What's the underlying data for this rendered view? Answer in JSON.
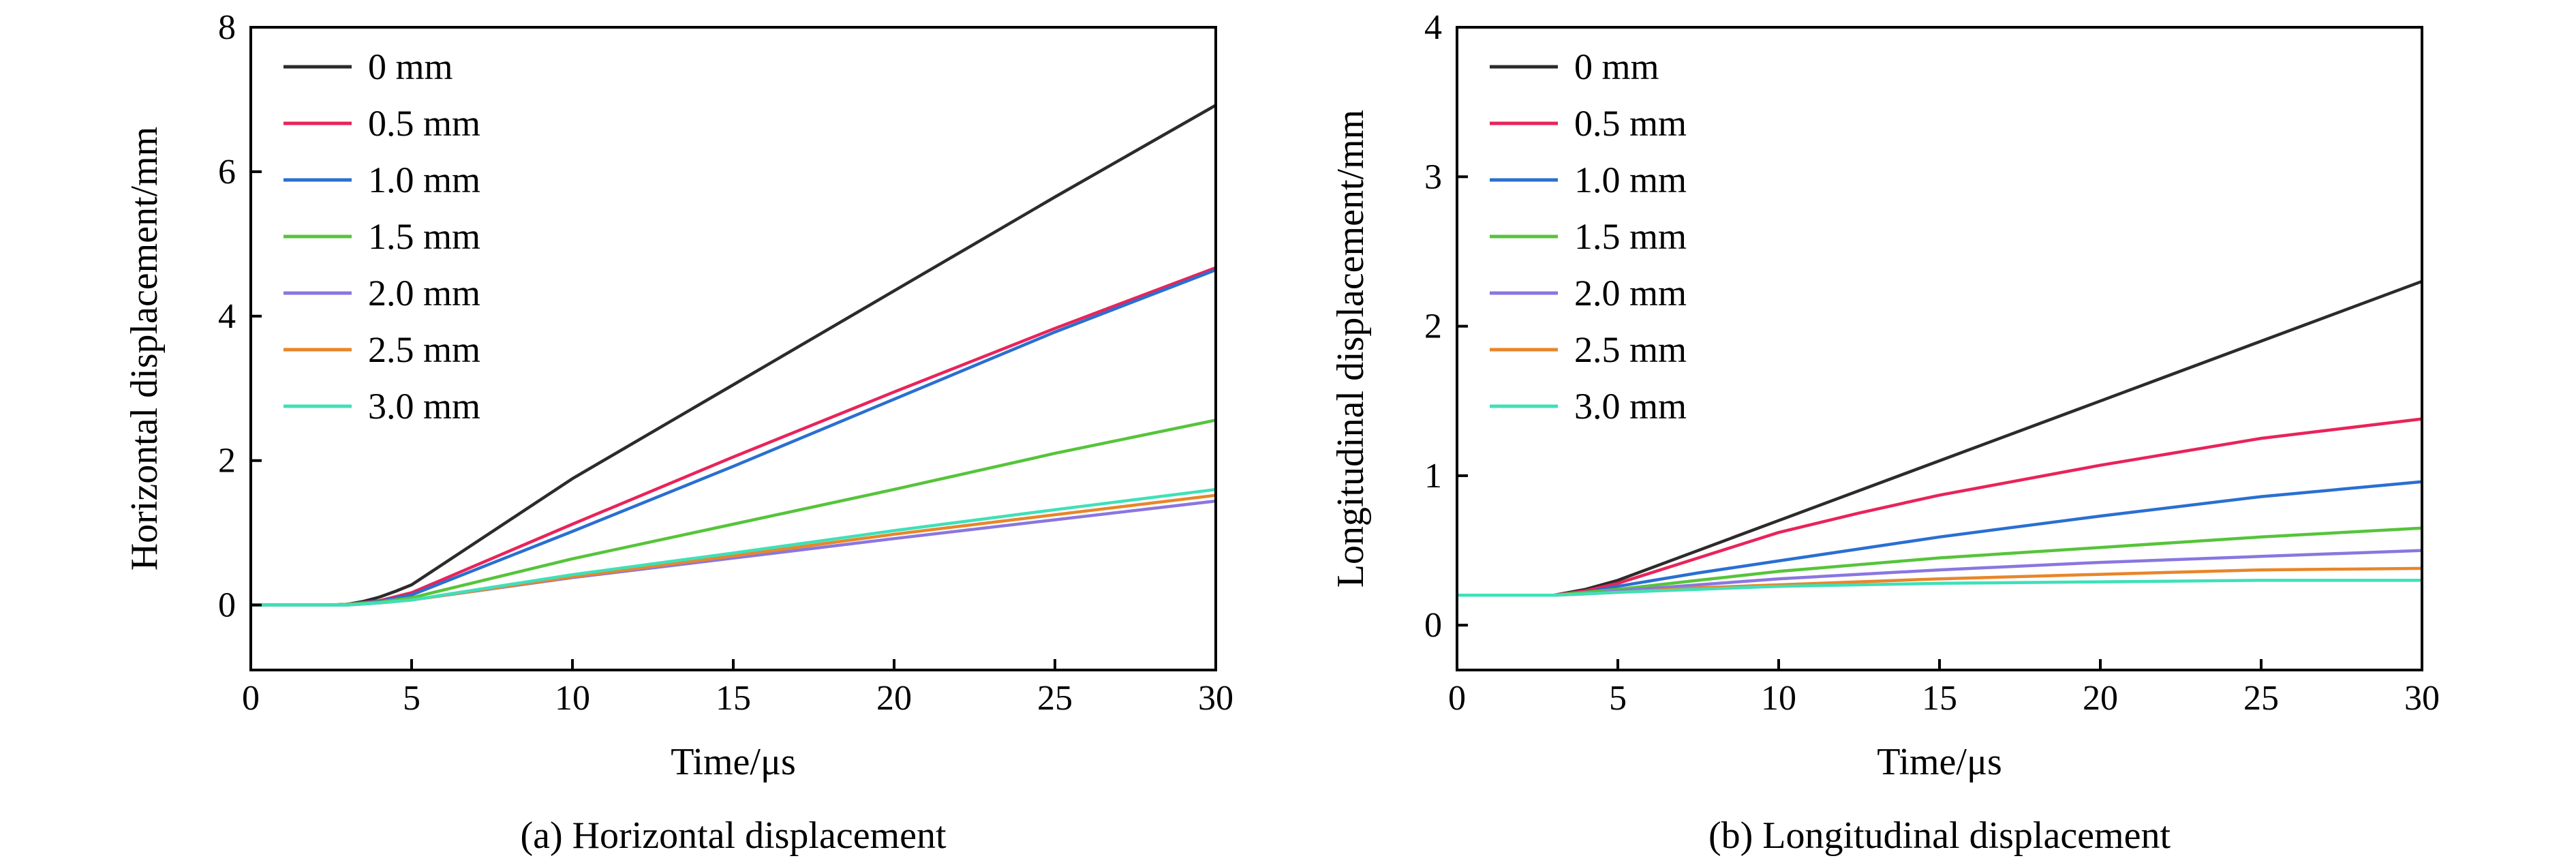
{
  "figure": {
    "captions": [
      "(a) Horizontal displacement",
      "(b) Longitudinal displacement"
    ]
  },
  "colors": {
    "0 mm": "#2b2b2b",
    "0.5 mm": "#e8245a",
    "1.0 mm": "#2a6fd1",
    "1.5 mm": "#56c43a",
    "2.0 mm": "#8a76e0",
    "2.5 mm": "#e8862a",
    "3.0 mm": "#3fe0b8"
  },
  "chart_data": [
    {
      "type": "line",
      "title": "(a) Horizontal displacement",
      "xlabel": "Time/μs",
      "ylabel": "Horizontal displacement/mm",
      "xlim": [
        0,
        30
      ],
      "ylim": [
        -0.9,
        8
      ],
      "xticks": [
        0,
        5,
        10,
        15,
        20,
        25,
        30
      ],
      "yticks": [
        0,
        2,
        4,
        6,
        8
      ],
      "legend": [
        "0 mm",
        "0.5 mm",
        "1.0 mm",
        "1.5 mm",
        "2.0 mm",
        "2.5 mm",
        "3.0 mm"
      ],
      "legend_position": "top-left",
      "series": [
        {
          "name": "0 mm",
          "x": [
            0,
            2.5,
            3,
            3.5,
            4,
            4.5,
            5,
            10,
            15,
            20,
            25,
            30
          ],
          "y": [
            0,
            0,
            0.01,
            0.05,
            0.11,
            0.19,
            0.28,
            1.75,
            3.05,
            4.35,
            5.65,
            6.92
          ]
        },
        {
          "name": "0.5 mm",
          "x": [
            0,
            2.5,
            3,
            4,
            5,
            10,
            15,
            20,
            25,
            30
          ],
          "y": [
            0,
            0,
            0.01,
            0.06,
            0.17,
            1.12,
            2.05,
            2.95,
            3.83,
            4.67
          ]
        },
        {
          "name": "1.0 mm",
          "x": [
            0,
            2.5,
            3,
            4,
            5,
            10,
            15,
            20,
            25,
            30
          ],
          "y": [
            0,
            0,
            0.01,
            0.05,
            0.14,
            1.02,
            1.92,
            2.85,
            3.78,
            4.64
          ]
        },
        {
          "name": "1.5 mm",
          "x": [
            0,
            2.5,
            3,
            4,
            5,
            10,
            15,
            20,
            25,
            30
          ],
          "y": [
            0,
            0,
            0.01,
            0.04,
            0.1,
            0.64,
            1.12,
            1.6,
            2.1,
            2.56
          ]
        },
        {
          "name": "2.0 mm",
          "x": [
            0,
            3,
            4,
            5,
            10,
            15,
            20,
            25,
            30
          ],
          "y": [
            0,
            0,
            0.03,
            0.07,
            0.38,
            0.65,
            0.92,
            1.18,
            1.44
          ]
        },
        {
          "name": "2.5 mm",
          "x": [
            0,
            3,
            4,
            5,
            10,
            15,
            20,
            25,
            30
          ],
          "y": [
            0,
            0,
            0.03,
            0.07,
            0.39,
            0.68,
            0.98,
            1.25,
            1.52
          ]
        },
        {
          "name": "3.0 mm",
          "x": [
            0,
            3,
            4,
            5,
            10,
            15,
            20,
            25,
            30
          ],
          "y": [
            0,
            0,
            0.03,
            0.07,
            0.42,
            0.72,
            1.03,
            1.32,
            1.6
          ]
        }
      ]
    },
    {
      "type": "line",
      "title": "(b) Longitudinal displacement",
      "xlabel": "Time/μs",
      "ylabel": "Longitudinal displacement/mm",
      "xlim": [
        0,
        30
      ],
      "ylim": [
        -0.3,
        4
      ],
      "xticks": [
        0,
        5,
        10,
        15,
        20,
        25,
        30
      ],
      "yticks": [
        0,
        1,
        2,
        3,
        4
      ],
      "legend": [
        "0 mm",
        "0.5 mm",
        "1.0 mm",
        "1.5 mm",
        "2.0 mm",
        "2.5 mm",
        "3.0 mm"
      ],
      "legend_position": "top-left",
      "series": [
        {
          "name": "0 mm",
          "x": [
            0,
            3,
            4,
            5,
            10,
            15,
            20,
            25,
            30
          ],
          "y": [
            0.2,
            0.2,
            0.24,
            0.3,
            0.7,
            1.1,
            1.5,
            1.9,
            2.3
          ]
        },
        {
          "name": "0.5 mm",
          "x": [
            0,
            3,
            4,
            5,
            7.5,
            10,
            12.5,
            15,
            20,
            25,
            30
          ],
          "y": [
            0.2,
            0.2,
            0.23,
            0.28,
            0.45,
            0.62,
            0.75,
            0.87,
            1.07,
            1.25,
            1.38
          ]
        },
        {
          "name": "1.0 mm",
          "x": [
            0,
            3,
            4,
            5,
            7.5,
            10,
            12.5,
            15,
            20,
            25,
            30
          ],
          "y": [
            0.2,
            0.2,
            0.22,
            0.26,
            0.35,
            0.43,
            0.51,
            0.59,
            0.73,
            0.86,
            0.96
          ]
        },
        {
          "name": "1.5 mm",
          "x": [
            0,
            3,
            4,
            5,
            7.5,
            10,
            15,
            20,
            25,
            30
          ],
          "y": [
            0.2,
            0.2,
            0.22,
            0.24,
            0.3,
            0.36,
            0.45,
            0.52,
            0.59,
            0.65
          ]
        },
        {
          "name": "2.0 mm",
          "x": [
            0,
            3,
            4,
            5,
            7.5,
            10,
            15,
            20,
            25,
            30
          ],
          "y": [
            0.2,
            0.2,
            0.21,
            0.23,
            0.27,
            0.31,
            0.37,
            0.42,
            0.46,
            0.5
          ]
        },
        {
          "name": "2.5 mm",
          "x": [
            0,
            3,
            4,
            5,
            7.5,
            10,
            15,
            20,
            25,
            30
          ],
          "y": [
            0.2,
            0.2,
            0.21,
            0.22,
            0.25,
            0.27,
            0.31,
            0.34,
            0.37,
            0.38
          ]
        },
        {
          "name": "3.0 mm",
          "x": [
            0,
            3,
            5,
            7.5,
            10,
            15,
            20,
            25,
            30
          ],
          "y": [
            0.2,
            0.2,
            0.22,
            0.24,
            0.26,
            0.28,
            0.29,
            0.3,
            0.3
          ]
        }
      ]
    }
  ]
}
